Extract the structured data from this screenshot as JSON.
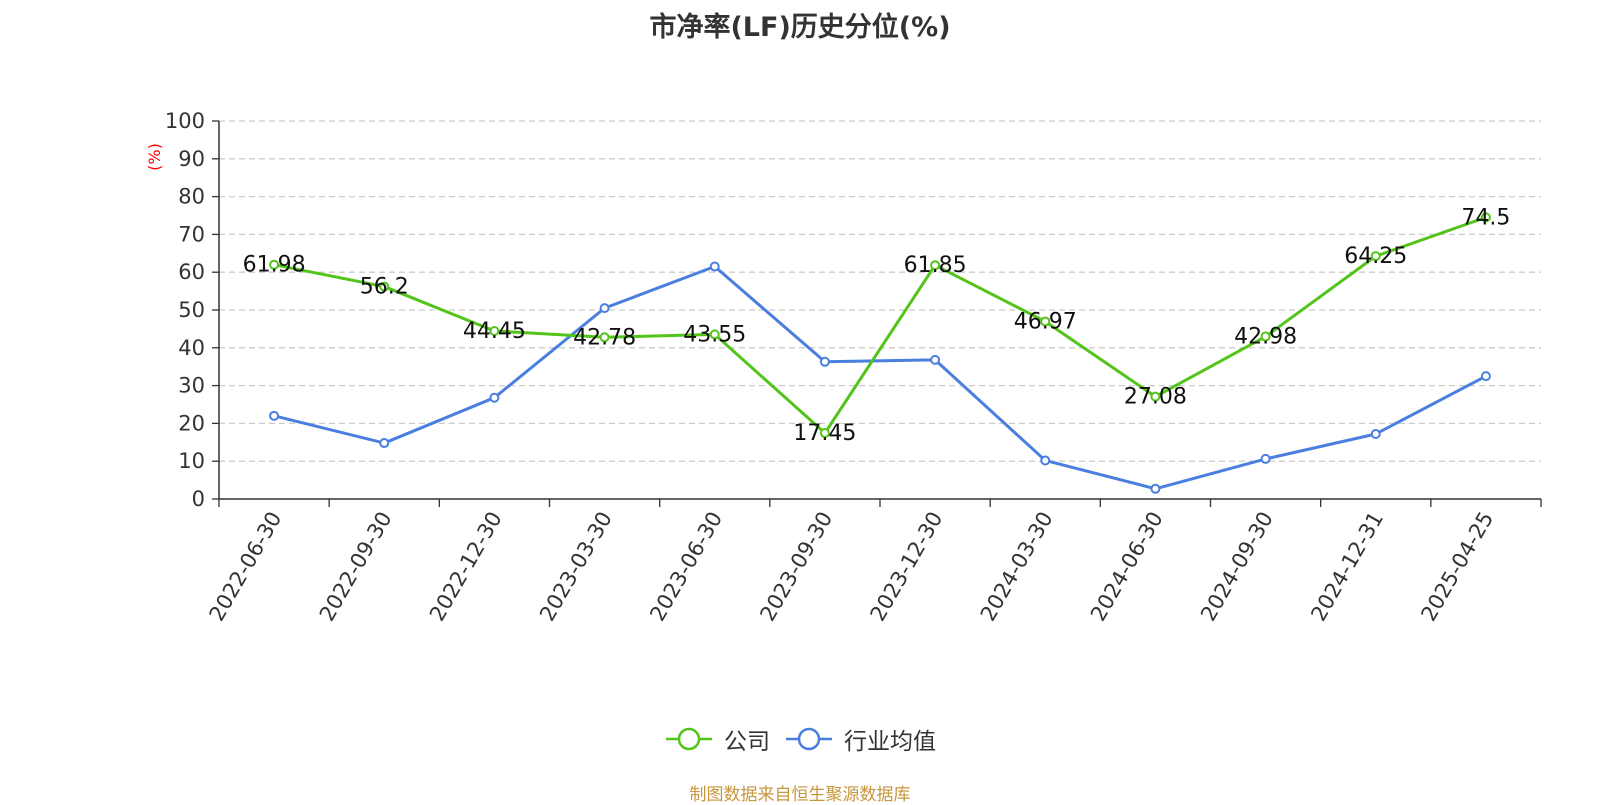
{
  "title": "市净率(LF)历史分位(%)",
  "source": "制图数据来自恒生聚源数据库",
  "colors": {
    "company": "#52c41a",
    "industry": "#4a7fe0",
    "axis_unit": "#ff0000",
    "grid": "#cccccc",
    "text": "#333333"
  },
  "chart_data": {
    "type": "line",
    "title": "市净率(LF)历史分位(%)",
    "ylabel": "(%)",
    "xlabel": "",
    "ylim": [
      0,
      100
    ],
    "yticks": [
      0,
      10,
      20,
      30,
      40,
      50,
      60,
      70,
      80,
      90,
      100
    ],
    "grid": true,
    "legend_position": "bottom-center",
    "categories": [
      "2022-06-30",
      "2022-09-30",
      "2022-12-30",
      "2023-03-30",
      "2023-06-30",
      "2023-09-30",
      "2023-12-30",
      "2024-03-30",
      "2024-06-30",
      "2024-09-30",
      "2024-12-31",
      "2025-04-25"
    ],
    "series": [
      {
        "name": "公司",
        "color": "#52c41a",
        "show_labels": true,
        "values": [
          61.98,
          56.2,
          44.45,
          42.78,
          43.55,
          17.45,
          61.85,
          46.97,
          27.08,
          42.98,
          64.25,
          74.5
        ],
        "labels": [
          "61.98",
          "56.2",
          "44.45",
          "42.78",
          "43.55",
          "17.45",
          "61.85",
          "46.97",
          "27.08",
          "42.98",
          "64.25",
          "74.5"
        ]
      },
      {
        "name": "行业均值",
        "color": "#4a7fe0",
        "show_labels": false,
        "values": [
          22,
          14.8,
          26.8,
          50.5,
          61.5,
          36.3,
          36.8,
          10.2,
          2.7,
          10.6,
          17.2,
          32.5
        ]
      }
    ]
  }
}
